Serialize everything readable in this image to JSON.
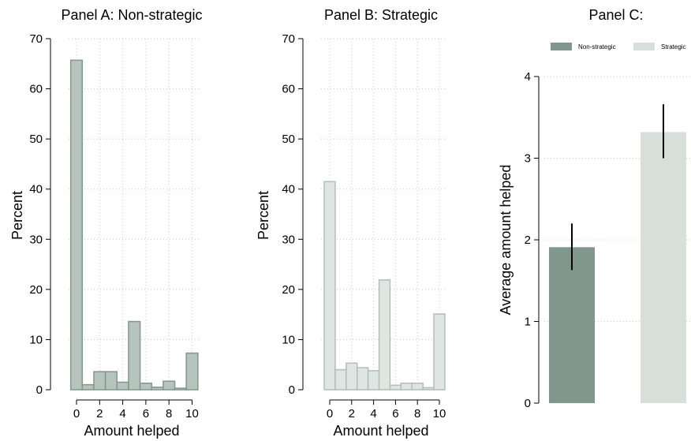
{
  "chart_data": [
    {
      "type": "bar",
      "title": "Panel A: Non-strategic",
      "xlabel": "Amount helped",
      "ylabel": "Percent",
      "x": [
        0,
        1,
        2,
        3,
        4,
        5,
        6,
        7,
        8,
        9,
        10
      ],
      "values": [
        65.7,
        1.0,
        3.6,
        3.6,
        1.5,
        13.6,
        1.3,
        0.5,
        1.7,
        0.3,
        7.3
      ],
      "xticks": [
        0,
        2,
        4,
        6,
        8,
        10
      ],
      "yticks": [
        0,
        10,
        20,
        30,
        40,
        50,
        60,
        70
      ],
      "ylim": [
        0,
        70
      ],
      "grid": true,
      "bar_color": "#b7c4be",
      "edge_color": "#7f978d"
    },
    {
      "type": "bar",
      "title": "Panel B: Strategic",
      "xlabel": "Amount helped",
      "ylabel": "Percent",
      "x": [
        0,
        1,
        2,
        3,
        4,
        5,
        6,
        7,
        8,
        9,
        10
      ],
      "values": [
        41.5,
        4.0,
        5.3,
        4.4,
        3.8,
        21.9,
        0.9,
        1.3,
        1.3,
        0.4,
        15.1
      ],
      "xticks": [
        0,
        2,
        4,
        6,
        8,
        10
      ],
      "yticks": [
        0,
        10,
        20,
        30,
        40,
        50,
        60,
        70
      ],
      "ylim": [
        0,
        70
      ],
      "grid": true,
      "bar_color": "#dfe5e2",
      "edge_color": "#b2bfb9"
    },
    {
      "type": "bar",
      "title": "Panel C:",
      "ylabel": "Average amount helped",
      "categories": [
        "Non-strategic",
        "Strategic"
      ],
      "values": [
        1.91,
        3.32
      ],
      "ci_low": [
        1.63,
        3.0
      ],
      "ci_high": [
        2.2,
        3.66
      ],
      "yticks": [
        0,
        1,
        2,
        3,
        4
      ],
      "ylim": [
        0,
        4
      ],
      "grid": true,
      "legend": "top",
      "colors": [
        "#7f978d",
        "#d6dfda"
      ]
    }
  ]
}
